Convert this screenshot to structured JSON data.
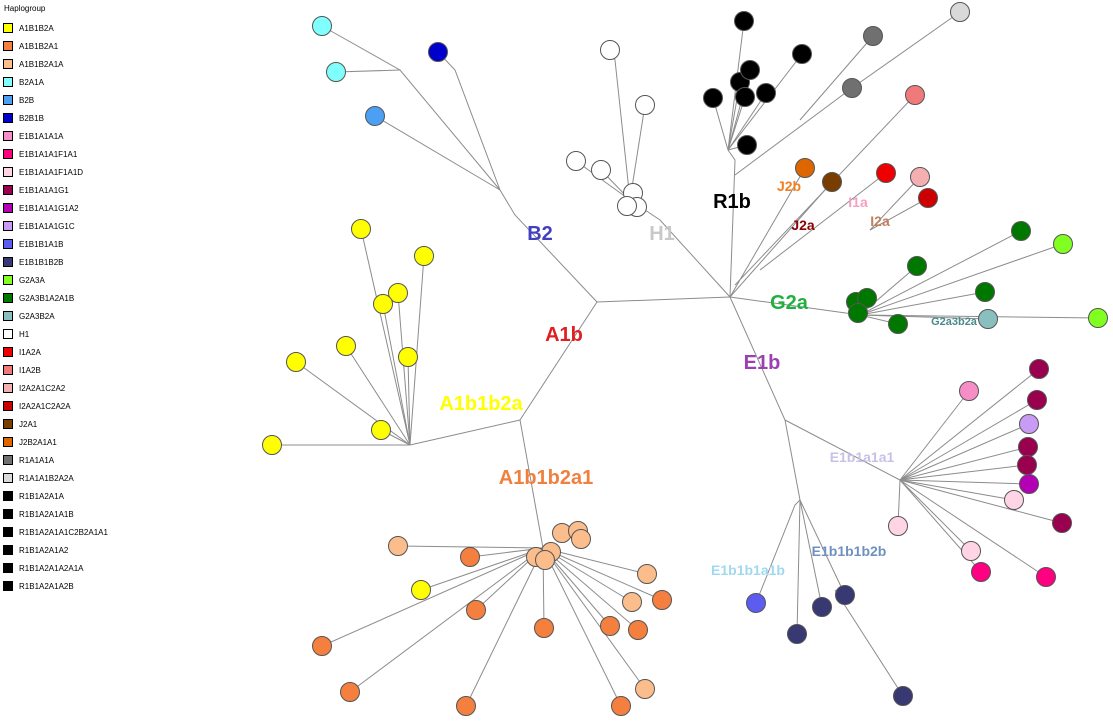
{
  "legend": {
    "title": "Haplogroup",
    "items": [
      {
        "label": "A1B1B2A",
        "color": "#ffff00"
      },
      {
        "label": "A1B1B2A1",
        "color": "#f47f3f"
      },
      {
        "label": "A1B1B2A1A",
        "color": "#fbbd8c"
      },
      {
        "label": "B2A1A",
        "color": "#80ffff"
      },
      {
        "label": "B2B",
        "color": "#4c9ff2"
      },
      {
        "label": "B2B1B",
        "color": "#0000cc"
      },
      {
        "label": "E1B1A1A1A",
        "color": "#f58ec7"
      },
      {
        "label": "E1B1A1A1F1A1",
        "color": "#ff0080"
      },
      {
        "label": "E1B1A1A1F1A1D",
        "color": "#ffd5e6"
      },
      {
        "label": "E1B1A1A1G1",
        "color": "#99004d"
      },
      {
        "label": "E1B1A1A1G1A2",
        "color": "#b400b4"
      },
      {
        "label": "E1B1A1A1G1C",
        "color": "#c89bf4"
      },
      {
        "label": "E1B1B1A1B",
        "color": "#5c5cf0"
      },
      {
        "label": "E1B1B1B2B",
        "color": "#383873"
      },
      {
        "label": "G2A3A",
        "color": "#80ff20"
      },
      {
        "label": "G2A3B1A2A1B",
        "color": "#007800"
      },
      {
        "label": "G2A3B2A",
        "color": "#8abfbf"
      },
      {
        "label": "H1",
        "color": "#ffffff"
      },
      {
        "label": "I1A2A",
        "color": "#ee0000"
      },
      {
        "label": "I1A2B",
        "color": "#f07a7a"
      },
      {
        "label": "I2A2A1C2A2",
        "color": "#f4b0b0"
      },
      {
        "label": "I2A2A1C2A2A",
        "color": "#cc0000"
      },
      {
        "label": "J2A1",
        "color": "#7a3d00"
      },
      {
        "label": "J2B2A1A1",
        "color": "#dd6600"
      },
      {
        "label": "R1A1A1A",
        "color": "#707070"
      },
      {
        "label": "R1A1A1B2A2A",
        "color": "#d9d9d9"
      },
      {
        "label": "R1B1A2A1A",
        "color": "#000000"
      },
      {
        "label": "R1B1A2A1A1B",
        "color": "#000000"
      },
      {
        "label": "R1B1A2A1A1C2B2A1A1",
        "color": "#000000"
      },
      {
        "label": "R1B1A2A1A2",
        "color": "#000000"
      },
      {
        "label": "R1B1A2A1A2A1A",
        "color": "#000000"
      },
      {
        "label": "R1B1A2A1A2B",
        "color": "#000000"
      }
    ]
  },
  "cluster_labels": [
    {
      "text": "B2",
      "color": "#4040c0"
    },
    {
      "text": "H1",
      "color": "#c8c8c8"
    },
    {
      "text": "R1b",
      "color": "#000000"
    },
    {
      "text": "J2b",
      "color": "#f08020"
    },
    {
      "text": "I1a",
      "color": "#f4a0c0"
    },
    {
      "text": "J2a",
      "color": "#8b0000"
    },
    {
      "text": "I2a",
      "color": "#c08060"
    },
    {
      "text": "G2a",
      "color": "#20b040"
    },
    {
      "text": "G2a3b2a",
      "color": "#4a8a8a"
    },
    {
      "text": "A1b",
      "color": "#e02020"
    },
    {
      "text": "E1b",
      "color": "#9b40b0"
    },
    {
      "text": "A1b1b2a",
      "color": "#ffff00"
    },
    {
      "text": "E1b1a1a1",
      "color": "#c8c0e8"
    },
    {
      "text": "A1b1b2a1",
      "color": "#f08040"
    },
    {
      "text": "E1b1b1b2b",
      "color": "#7090c0"
    },
    {
      "text": "E1b1b1a1b",
      "color": "#a0d8f0"
    }
  ]
}
